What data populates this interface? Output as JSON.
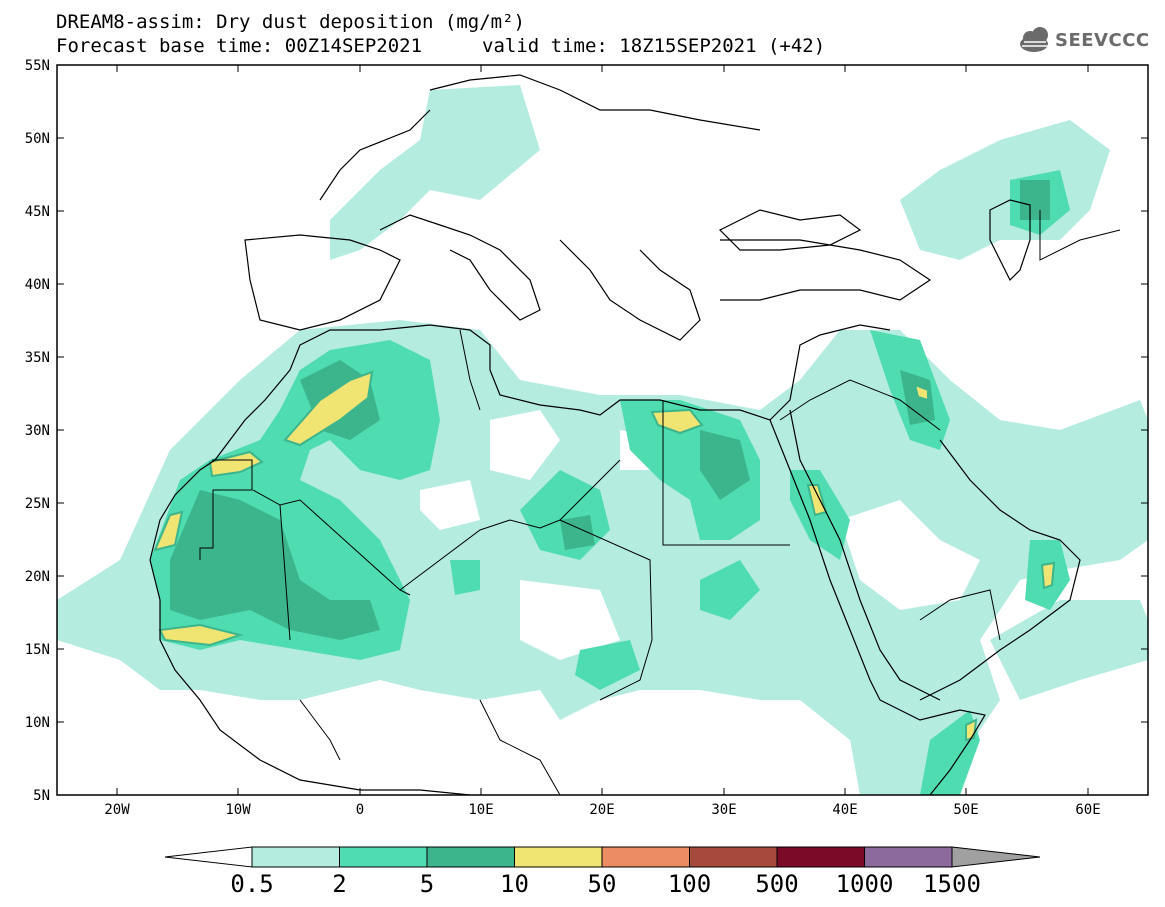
{
  "title": {
    "line1": "DREAM8-assim: Dry dust deposition (mg/m²)",
    "base": "Forecast base time: 00Z14SEP2021",
    "valid": "valid time: 18Z15SEP2021 (+42)"
  },
  "logo": {
    "text": "SEEVCCC",
    "icon": "cloud-icon"
  },
  "map": {
    "region": "North Africa, Europe and Middle East",
    "lon_range": [
      -25,
      65
    ],
    "lat_range": [
      5,
      55
    ],
    "lat_labels": [
      "55N",
      "50N",
      "45N",
      "40N",
      "35N",
      "30N",
      "25N",
      "20N",
      "15N",
      "10N",
      "5N"
    ],
    "lon_labels": [
      "20W",
      "10W",
      "0",
      "10E",
      "20E",
      "30E",
      "40E",
      "50E",
      "60E"
    ]
  },
  "colorbar": {
    "levels": [
      "0.5",
      "2",
      "5",
      "10",
      "50",
      "100",
      "500",
      "1000",
      "1500"
    ],
    "colors": [
      "#b4ece0",
      "#4fdcb0",
      "#3cb48c",
      "#f0e473",
      "#eb8c64",
      "#a64b3c",
      "#7a0a28",
      "#8c6a9e",
      "#a0a0a0"
    ]
  }
}
